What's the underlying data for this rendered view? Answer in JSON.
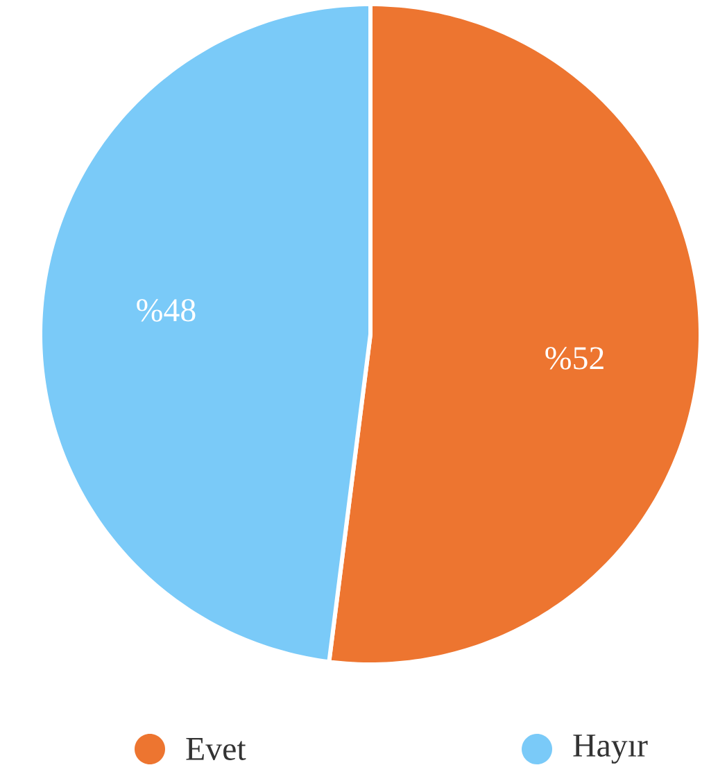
{
  "chart_data": {
    "type": "pie",
    "categories": [
      "Evet",
      "Hayır"
    ],
    "values": [
      52,
      48
    ],
    "colors": [
      "#ed7530",
      "#7acaf8"
    ],
    "value_labels": [
      "%52",
      "%48"
    ],
    "legend": "bottom"
  }
}
